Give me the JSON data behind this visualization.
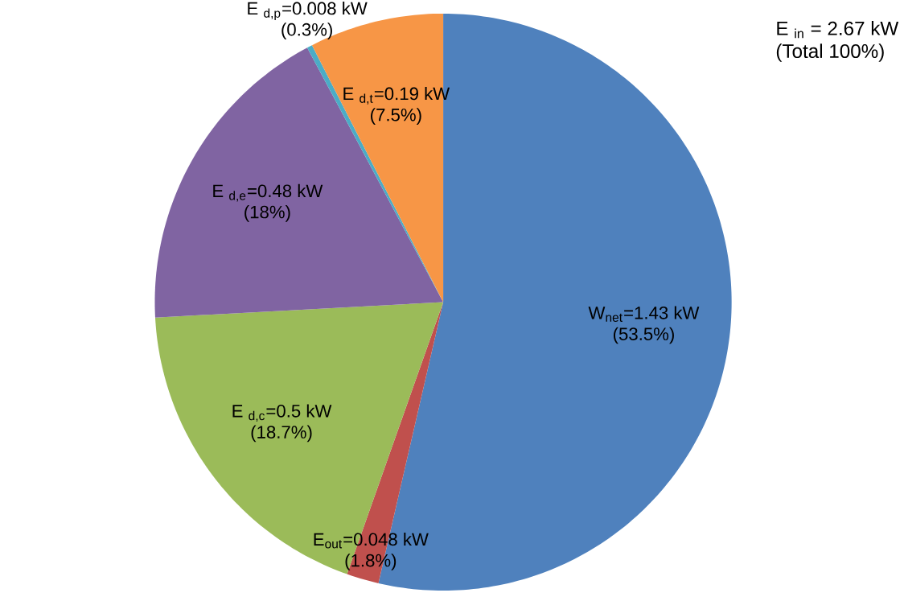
{
  "chart_data": {
    "type": "pie",
    "categories": [
      "W$_{net}$=1.43 kW",
      "E$_{out}$=0.048 kW",
      "E $_{d,c}$=0.5 kW",
      "E $_{d,e}$=0.48 kW",
      "E $_{d,p}$=0.008 kW",
      "E $_{d,t}$=0.19 kW"
    ],
    "values": [
      53.5,
      1.8,
      18.7,
      18,
      0.3,
      7.5
    ],
    "value_labels": [
      "(53.5%)",
      "(1.8%)",
      "(18.7%)",
      "(18%)",
      "(0.3%)",
      "(7.5%)"
    ],
    "colors": [
      "#4f81bd",
      "#c0504d",
      "#9bbb59",
      "#8064a2",
      "#4bacc6",
      "#f79646"
    ],
    "annotations": [
      "E $_{in}$ = 2.67 kW",
      "(Total 100%)"
    ]
  }
}
